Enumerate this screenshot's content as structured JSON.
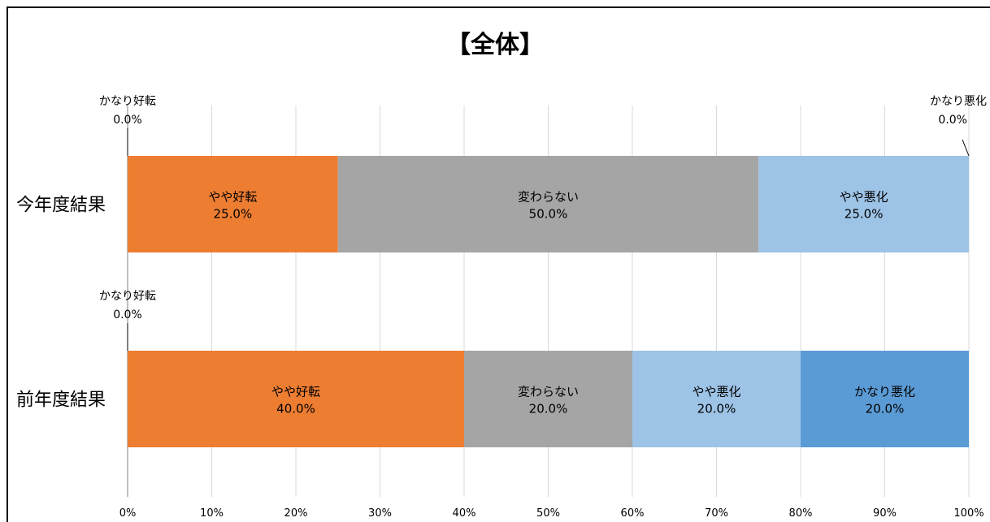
{
  "title": "【全体】",
  "chart_data": {
    "type": "bar",
    "orientation": "horizontal",
    "stacked": "percent",
    "title": "【全体】",
    "categories": [
      "今年度結果",
      "前年度結果"
    ],
    "series": [
      {
        "name": "かなり好転",
        "values": [
          0.0,
          0.0
        ],
        "color": "#5b9bd5"
      },
      {
        "name": "やや好転",
        "values": [
          25.0,
          40.0
        ],
        "color": "#ed7d31"
      },
      {
        "name": "変わらない",
        "values": [
          50.0,
          20.0
        ],
        "color": "#a5a5a5"
      },
      {
        "name": "やや悪化",
        "values": [
          25.0,
          20.0
        ],
        "color": "#9dc3e6"
      },
      {
        "name": "かなり悪化",
        "values": [
          0.0,
          20.0
        ],
        "color": "#5b9bd5"
      }
    ],
    "xlim": [
      0,
      100
    ],
    "x_ticks": [
      "0%",
      "10%",
      "20%",
      "30%",
      "40%",
      "50%",
      "60%",
      "70%",
      "80%",
      "90%",
      "100%"
    ],
    "grid": "vertical",
    "legend": "none",
    "value_format": "0.0%"
  }
}
